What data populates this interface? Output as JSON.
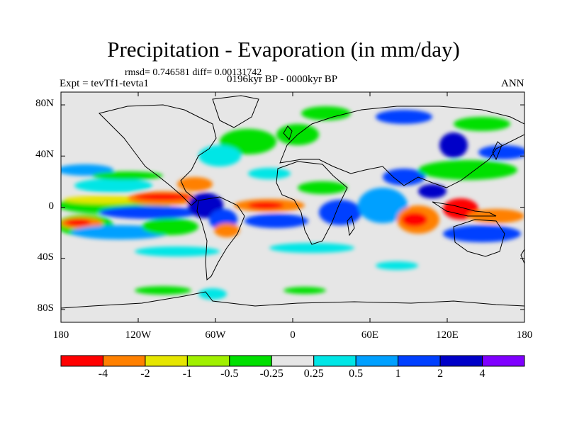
{
  "map": {
    "title": "Precipitation - Evaporation (in mm/day)",
    "stats_line": "rmsd= 0.746581 diff= 0.00131742",
    "experiment": "Expt = tevTf1-tevta1",
    "period": "0196kyr BP - 0000kyr BP",
    "season": "ANN",
    "lat_labels": [
      {
        "id": "80n",
        "text": "80N",
        "value": 80
      },
      {
        "id": "40n",
        "text": "40N",
        "value": 40
      },
      {
        "id": "eq",
        "text": "0",
        "value": 0
      },
      {
        "id": "40s",
        "text": "40S",
        "value": -40
      },
      {
        "id": "80s",
        "text": "80S",
        "value": -80
      }
    ],
    "lon_labels": [
      {
        "id": "180w",
        "text": "180",
        "value": -180
      },
      {
        "id": "120w",
        "text": "120W",
        "value": -120
      },
      {
        "id": "60w",
        "text": "60W",
        "value": -60
      },
      {
        "id": "0",
        "text": "0",
        "value": 0
      },
      {
        "id": "60e",
        "text": "60E",
        "value": 60
      },
      {
        "id": "120e",
        "text": "120E",
        "value": 120
      },
      {
        "id": "180e",
        "text": "180",
        "value": 180
      }
    ]
  },
  "colorbar": {
    "colors": [
      "#ff0000",
      "#ff8000",
      "#e6e600",
      "#a0f000",
      "#00e000",
      "#e6e6e6",
      "#00e6e6",
      "#00a0ff",
      "#0040ff",
      "#0000c8",
      "#8000ff"
    ],
    "labels": [
      "-4",
      "-2",
      "-1",
      "-0.5",
      "-0.25",
      "0.25",
      "0.5",
      "1",
      "2",
      "4"
    ]
  },
  "colors": {
    "land_background": "#e6e6e6",
    "coastline": "#000000"
  }
}
